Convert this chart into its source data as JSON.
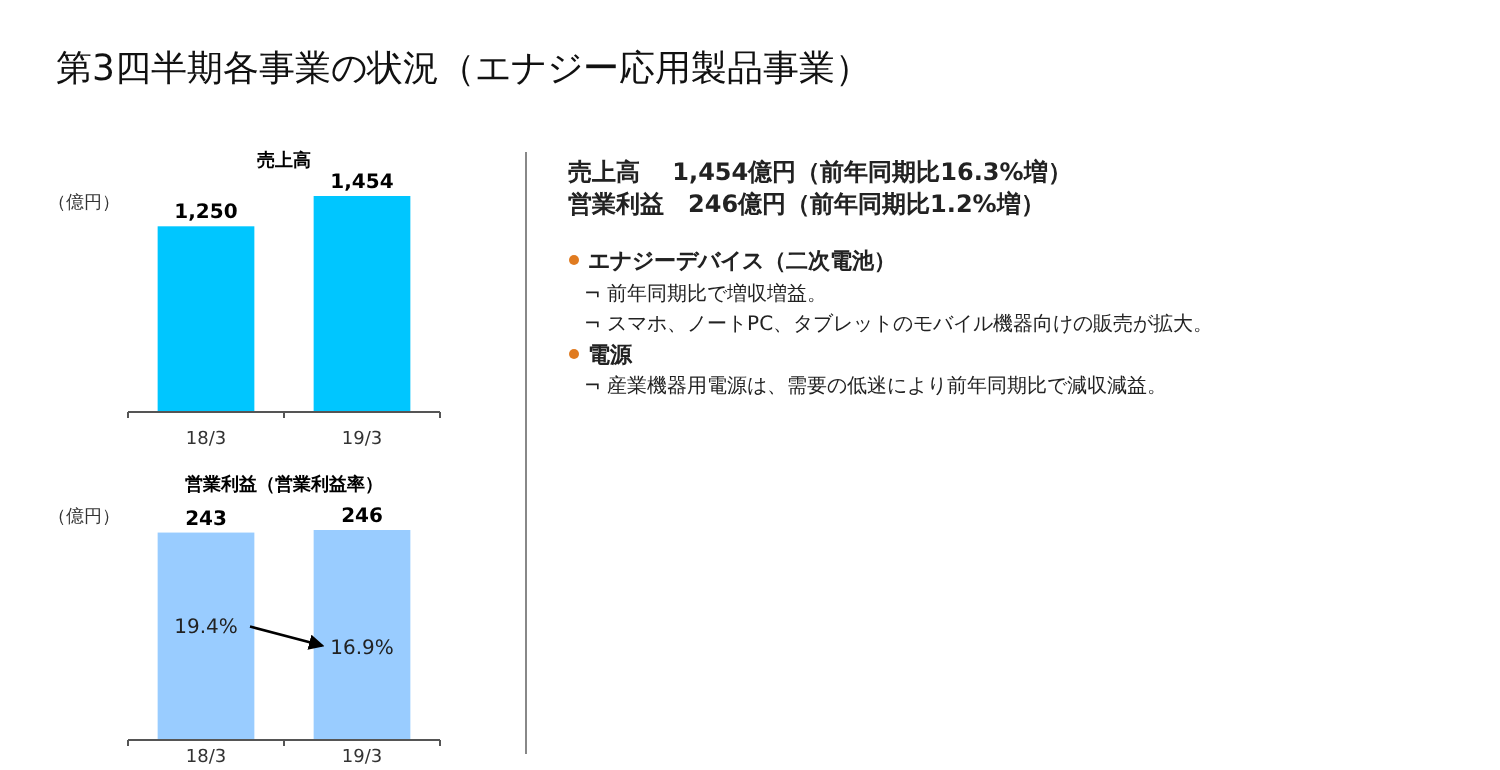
{
  "chart_data": [
    {
      "type": "bar",
      "title": "売上高",
      "ylabel": "（億円）",
      "categories": [
        "18/3",
        "19/3"
      ],
      "values": [
        1250,
        1454
      ],
      "color": "#00c6ff",
      "value_labels": [
        "1,250",
        "1,454"
      ]
    },
    {
      "type": "bar",
      "title": "営業利益（営業利益率）",
      "ylabel": "（億円）",
      "categories": [
        "18/3",
        "19/3"
      ],
      "values": [
        243,
        246
      ],
      "color": "#99ccff",
      "data_labels": true,
      "annotations": [
        "19.4%",
        "16.9%"
      ]
    },
    {
      "type": "other",
      "title": "第3四半期各事業の状況（エナジー応用製品事業）",
      "annotations": [
        "売上高　 1,454億円（前年同期比16.3%増）",
        "営業利益　246億円（前年同期比1.2%増）",
        "エナジーデバイス（二次電池）",
        "¬ 前年同期比で増収増益。",
        "¬ スマホ、ノートPC、タブレットのモバイル機器向けの販売が拡大。",
        "電源",
        "¬ 産業機器用電源は、需要の低迷により前年同期比で減収減益。"
      ]
    }
  ]
}
